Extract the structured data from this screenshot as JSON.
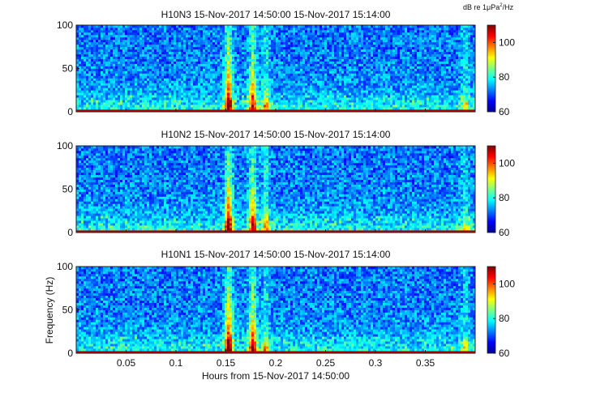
{
  "colorbar_unit": {
    "prefix": "dB re 1μPa",
    "sup": "2",
    "suffix": "/Hz"
  },
  "chart_data": [
    {
      "type": "heatmap",
      "title": "H10N3 15-Nov-2017 14:50:00 15-Nov-2017 15:14:00",
      "x_range": [
        0,
        0.4
      ],
      "y_range": [
        0,
        100
      ],
      "y_ticks": [
        0,
        50,
        100
      ],
      "ylabel": "",
      "colorbar": {
        "range": [
          60,
          110
        ],
        "ticks": [
          60,
          80,
          100
        ]
      },
      "events": [
        {
          "x": 0.153,
          "peak_y": 100,
          "intensity": 1.0
        },
        {
          "x": 0.177,
          "peak_y": 80,
          "intensity": 0.9
        },
        {
          "x": 0.19,
          "peak_y": 40,
          "intensity": 0.6
        },
        {
          "x": 0.39,
          "peak_y": 30,
          "intensity": 0.5
        }
      ]
    },
    {
      "type": "heatmap",
      "title": "H10N2 15-Nov-2017 14:50:00 15-Nov-2017 15:14:00",
      "x_range": [
        0,
        0.4
      ],
      "y_range": [
        0,
        100
      ],
      "y_ticks": [
        0,
        50,
        100
      ],
      "ylabel": "",
      "colorbar": {
        "range": [
          60,
          110
        ],
        "ticks": [
          60,
          80,
          100
        ]
      },
      "events": [
        {
          "x": 0.153,
          "peak_y": 100,
          "intensity": 1.0
        },
        {
          "x": 0.177,
          "peak_y": 80,
          "intensity": 0.9
        },
        {
          "x": 0.19,
          "peak_y": 40,
          "intensity": 0.6
        },
        {
          "x": 0.39,
          "peak_y": 30,
          "intensity": 0.5
        }
      ]
    },
    {
      "type": "heatmap",
      "title": "H10N1 15-Nov-2017 14:50:00 15-Nov-2017 15:14:00",
      "x_range": [
        0,
        0.4
      ],
      "y_range": [
        0,
        100
      ],
      "y_ticks": [
        0,
        50,
        100
      ],
      "x_ticks": [
        0.05,
        0.1,
        0.15,
        0.2,
        0.25,
        0.3,
        0.35
      ],
      "x_tick_labels": [
        "0.05",
        "0.1",
        "0.15",
        "0.2",
        "0.25",
        "0.3",
        "0.35"
      ],
      "xlabel": "Hours from 15-Nov-2017 14:50:00",
      "ylabel": "Frequency (Hz)",
      "colorbar": {
        "range": [
          60,
          110
        ],
        "ticks": [
          60,
          80,
          100
        ]
      },
      "events": [
        {
          "x": 0.153,
          "peak_y": 100,
          "intensity": 1.0
        },
        {
          "x": 0.177,
          "peak_y": 80,
          "intensity": 0.9
        },
        {
          "x": 0.19,
          "peak_y": 40,
          "intensity": 0.6
        },
        {
          "x": 0.39,
          "peak_y": 30,
          "intensity": 0.5
        }
      ]
    }
  ]
}
